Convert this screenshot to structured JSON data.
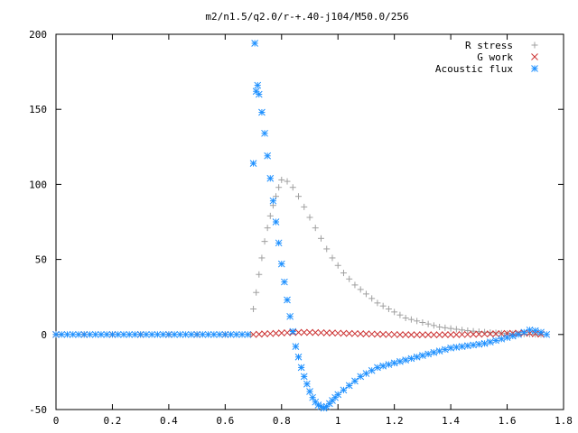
{
  "chart_data": {
    "type": "scatter",
    "title": "m2/n1.5/q2.0/r-+.40-j104/M50.0/256",
    "xlabel": "",
    "ylabel": "",
    "xlim": [
      0,
      1.8
    ],
    "ylim": [
      -50,
      200
    ],
    "xticks": [
      0,
      0.2,
      0.4,
      0.6,
      0.8,
      1,
      1.2,
      1.4,
      1.6,
      1.8
    ],
    "yticks": [
      -50,
      0,
      50,
      100,
      150,
      200
    ],
    "xtick_labels": [
      "0",
      "0.2",
      "0.4",
      "0.6",
      "0.8",
      "1",
      "1.2",
      "1.4",
      "1.6",
      "1.8"
    ],
    "ytick_labels": [
      "-50",
      "0",
      "50",
      "100",
      "150",
      "200"
    ],
    "grid": false,
    "legend_position": "top-right",
    "series": [
      {
        "name": "R stress",
        "marker": "plus",
        "color": "#a0a0a0",
        "x": [
          0.0,
          0.1,
          0.2,
          0.3,
          0.4,
          0.5,
          0.6,
          0.69,
          0.7,
          0.71,
          0.72,
          0.73,
          0.74,
          0.75,
          0.76,
          0.77,
          0.78,
          0.79,
          0.8,
          0.82,
          0.84,
          0.86,
          0.88,
          0.9,
          0.92,
          0.94,
          0.96,
          0.98,
          1.0,
          1.02,
          1.04,
          1.06,
          1.08,
          1.1,
          1.12,
          1.14,
          1.16,
          1.18,
          1.2,
          1.22,
          1.24,
          1.26,
          1.28,
          1.3,
          1.32,
          1.34,
          1.36,
          1.38,
          1.4,
          1.42,
          1.44,
          1.46,
          1.48,
          1.5,
          1.52,
          1.54,
          1.56,
          1.58,
          1.6,
          1.62,
          1.64,
          1.66,
          1.68,
          1.7,
          1.72
        ],
        "y": [
          0,
          0,
          0,
          0,
          0,
          0,
          0,
          0,
          17,
          28,
          40,
          51,
          62,
          71,
          79,
          86,
          92,
          98,
          103,
          102,
          98,
          92,
          85,
          78,
          71,
          64,
          57,
          51,
          46,
          41,
          37,
          33,
          30,
          27,
          24,
          21,
          19,
          17,
          15,
          13,
          11,
          10,
          9,
          8,
          7,
          6,
          5,
          4.5,
          4,
          3.5,
          3,
          2.6,
          2.2,
          1.9,
          1.6,
          1.3,
          1.1,
          0.9,
          0.7,
          0.5,
          0.4,
          0.3,
          0.2,
          0.1,
          0
        ]
      },
      {
        "name": "G work",
        "marker": "cross",
        "color": "#cc3333",
        "x": [
          0.0,
          0.1,
          0.2,
          0.3,
          0.4,
          0.5,
          0.6,
          0.7,
          0.72,
          0.74,
          0.76,
          0.78,
          0.8,
          0.82,
          0.84,
          0.86,
          0.88,
          0.9,
          0.92,
          0.94,
          0.96,
          0.98,
          1.0,
          1.02,
          1.04,
          1.06,
          1.08,
          1.1,
          1.12,
          1.14,
          1.16,
          1.18,
          1.2,
          1.22,
          1.24,
          1.26,
          1.28,
          1.3,
          1.32,
          1.34,
          1.36,
          1.38,
          1.4,
          1.42,
          1.44,
          1.46,
          1.48,
          1.5,
          1.52,
          1.54,
          1.56,
          1.58,
          1.6,
          1.62,
          1.64,
          1.66,
          1.68,
          1.7,
          1.72
        ],
        "y": [
          0,
          0,
          0,
          0,
          0,
          0,
          0,
          0,
          0.2,
          0.4,
          0.6,
          0.8,
          1,
          1.2,
          1.3,
          1.4,
          1.4,
          1.4,
          1.3,
          1.2,
          1.1,
          1,
          0.9,
          0.8,
          0.7,
          0.6,
          0.5,
          0.4,
          0.3,
          0.2,
          0.1,
          0,
          0,
          -0.1,
          -0.1,
          -0.2,
          -0.2,
          -0.2,
          -0.2,
          -0.2,
          -0.2,
          -0.1,
          -0.1,
          -0.1,
          0,
          0,
          0.1,
          0.2,
          0.3,
          0.4,
          0.5,
          0.6,
          0.7,
          0.8,
          0.9,
          1,
          0.8,
          0.5,
          0.2
        ]
      },
      {
        "name": "Acoustic flux",
        "marker": "star",
        "color": "#1e90ff",
        "x": [
          0.0,
          0.02,
          0.04,
          0.06,
          0.08,
          0.1,
          0.12,
          0.14,
          0.16,
          0.18,
          0.2,
          0.22,
          0.24,
          0.26,
          0.28,
          0.3,
          0.32,
          0.34,
          0.36,
          0.38,
          0.4,
          0.42,
          0.44,
          0.46,
          0.48,
          0.5,
          0.52,
          0.54,
          0.56,
          0.58,
          0.6,
          0.62,
          0.64,
          0.66,
          0.68,
          0.7,
          0.705,
          0.71,
          0.715,
          0.72,
          0.73,
          0.74,
          0.75,
          0.76,
          0.77,
          0.78,
          0.79,
          0.8,
          0.81,
          0.82,
          0.83,
          0.84,
          0.85,
          0.86,
          0.87,
          0.88,
          0.89,
          0.9,
          0.91,
          0.92,
          0.93,
          0.94,
          0.95,
          0.96,
          0.97,
          0.98,
          0.99,
          1.0,
          1.02,
          1.04,
          1.06,
          1.08,
          1.1,
          1.12,
          1.14,
          1.16,
          1.18,
          1.2,
          1.22,
          1.24,
          1.26,
          1.28,
          1.3,
          1.32,
          1.34,
          1.36,
          1.38,
          1.4,
          1.42,
          1.44,
          1.46,
          1.48,
          1.5,
          1.52,
          1.54,
          1.56,
          1.58,
          1.6,
          1.62,
          1.64,
          1.66,
          1.68,
          1.7,
          1.72,
          1.74
        ],
        "y": [
          0,
          0,
          0,
          0,
          0,
          0,
          0,
          0,
          0,
          0,
          0,
          0,
          0,
          0,
          0,
          0,
          0,
          0,
          0,
          0,
          0,
          0,
          0,
          0,
          0,
          0,
          0,
          0,
          0,
          0,
          0,
          0,
          0,
          0,
          0,
          114,
          194,
          162,
          166,
          160,
          148,
          134,
          119,
          104,
          89,
          75,
          61,
          47,
          35,
          23,
          12,
          2,
          -8,
          -15,
          -22,
          -28,
          -33,
          -38,
          -42,
          -45,
          -47,
          -48,
          -49,
          -48,
          -46,
          -44,
          -42,
          -40,
          -37,
          -34,
          -31,
          -28,
          -26,
          -24,
          -22,
          -21,
          -20,
          -19,
          -18,
          -17,
          -16,
          -15,
          -14,
          -13,
          -12,
          -11,
          -10,
          -9,
          -8.5,
          -8,
          -7.5,
          -7,
          -6.5,
          -6,
          -5,
          -4,
          -3,
          -2,
          -1,
          0,
          1.5,
          3,
          2.5,
          1.5,
          0
        ]
      }
    ]
  }
}
